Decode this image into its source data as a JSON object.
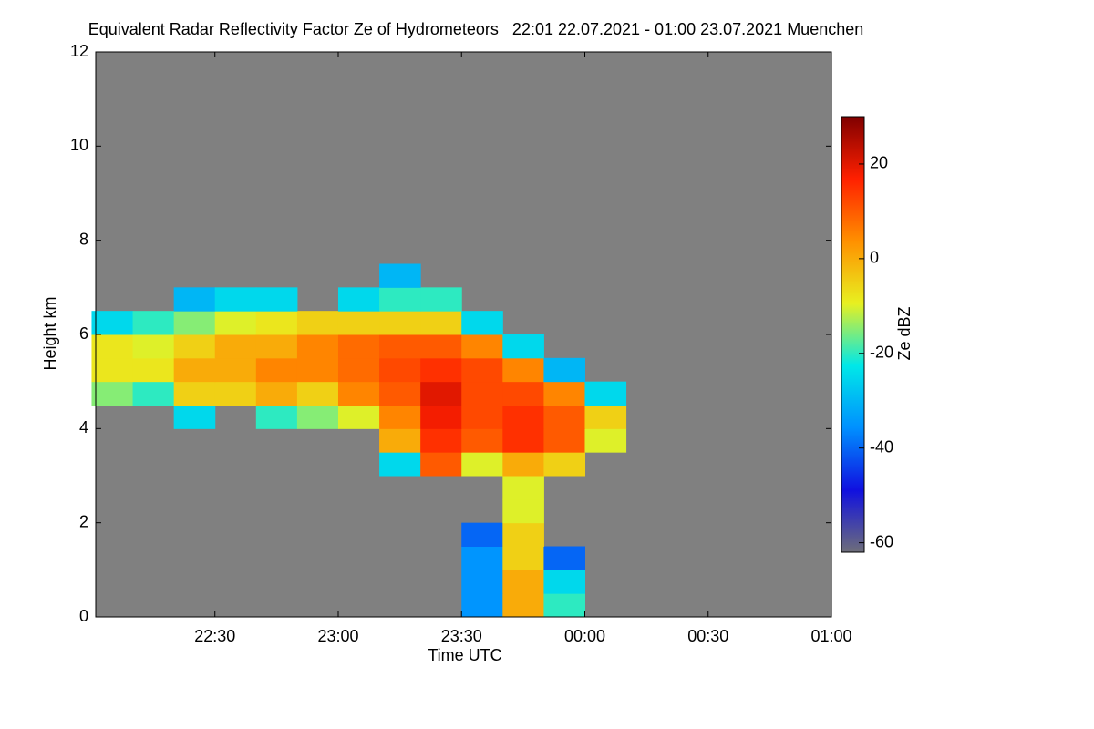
{
  "chart_data": {
    "type": "heatmap",
    "title": "Equivalent Radar Reflectivity Factor Ze of Hydrometeors   22:01 22.07.2021 - 01:00 23.07.2021 Muenchen",
    "x_label": "Time UTC",
    "y_label": "Height km",
    "colorbar_label": "Ze dBZ",
    "x": [
      22.0833,
      22.25,
      22.4167,
      22.5833,
      22.75,
      22.9167,
      23.0833,
      23.25,
      23.4167,
      23.5833,
      23.75,
      23.9167,
      24.0833,
      24.25,
      24.4167,
      24.5833,
      24.75,
      24.9167
    ],
    "y": [
      0.25,
      0.75,
      1.25,
      1.75,
      2.25,
      2.75,
      3.25,
      3.75,
      4.25,
      4.75,
      5.25,
      5.75,
      6.25,
      6.75,
      7.25
    ],
    "z": [
      [
        null,
        null,
        null,
        null,
        null,
        null,
        null,
        null,
        null,
        -35,
        0,
        -20,
        null,
        null,
        null,
        null,
        null,
        null
      ],
      [
        null,
        null,
        null,
        null,
        null,
        null,
        null,
        null,
        null,
        -35,
        0,
        -25,
        null,
        null,
        null,
        null,
        null,
        null
      ],
      [
        null,
        null,
        null,
        null,
        null,
        null,
        null,
        null,
        null,
        -35,
        -5,
        -40,
        null,
        null,
        null,
        null,
        null,
        null
      ],
      [
        null,
        null,
        null,
        null,
        null,
        null,
        null,
        null,
        null,
        -40,
        -5,
        null,
        null,
        null,
        null,
        null,
        null,
        null
      ],
      [
        null,
        null,
        null,
        null,
        null,
        null,
        null,
        null,
        null,
        null,
        -10,
        null,
        null,
        null,
        null,
        null,
        null,
        null
      ],
      [
        null,
        null,
        null,
        null,
        null,
        null,
        null,
        null,
        null,
        null,
        -10,
        null,
        null,
        null,
        null,
        null,
        null,
        null
      ],
      [
        null,
        null,
        null,
        null,
        null,
        null,
        null,
        -25,
        10,
        -10,
        0,
        -5,
        null,
        null,
        null,
        null,
        null,
        null
      ],
      [
        null,
        null,
        null,
        null,
        null,
        null,
        null,
        0,
        15,
        10,
        15,
        10,
        -10,
        null,
        null,
        null,
        null,
        null
      ],
      [
        null,
        null,
        -25,
        null,
        -20,
        -15,
        -10,
        5,
        18,
        12,
        15,
        10,
        -5,
        null,
        null,
        null,
        null,
        null
      ],
      [
        -15,
        -20,
        -5,
        -5,
        0,
        -5,
        5,
        10,
        20,
        12,
        12,
        5,
        -25,
        null,
        null,
        null,
        null,
        null
      ],
      [
        -8,
        -8,
        0,
        0,
        5,
        5,
        8,
        12,
        15,
        12,
        5,
        -30,
        null,
        null,
        null,
        null,
        null,
        null
      ],
      [
        -8,
        -10,
        -5,
        0,
        0,
        5,
        8,
        10,
        10,
        5,
        -25,
        null,
        null,
        null,
        null,
        null,
        null,
        null
      ],
      [
        -25,
        -20,
        -15,
        -10,
        -8,
        -5,
        -5,
        -5,
        -5,
        -25,
        null,
        null,
        null,
        null,
        null,
        null,
        null,
        null
      ],
      [
        null,
        null,
        -30,
        -25,
        -25,
        null,
        -25,
        -20,
        -20,
        null,
        null,
        null,
        null,
        null,
        null,
        null,
        null,
        null
      ],
      [
        null,
        null,
        null,
        null,
        null,
        null,
        null,
        -30,
        null,
        null,
        null,
        null,
        null,
        null,
        null,
        null,
        null,
        null
      ]
    ],
    "xlim": [
      22.0167,
      25.0
    ],
    "xticks": [
      {
        "value": 22.5,
        "label": "22:30"
      },
      {
        "value": 23.0,
        "label": "23:00"
      },
      {
        "value": 23.5,
        "label": "23:30"
      },
      {
        "value": 24.0,
        "label": "00:00"
      },
      {
        "value": 24.5,
        "label": "00:30"
      },
      {
        "value": 25.0,
        "label": "01:00"
      }
    ],
    "ylim": [
      0,
      12
    ],
    "yticks": [
      0,
      2,
      4,
      6,
      8,
      10,
      12
    ],
    "zlim": [
      -62,
      30
    ],
    "zticks": [
      -60,
      -40,
      -20,
      0,
      20
    ],
    "background": "#808080",
    "colormap": [
      "#6e6e7a",
      "#1010e0",
      "#0090ff",
      "#00e8e8",
      "#e8f020",
      "#ff9000",
      "#ff2000",
      "#800000"
    ]
  }
}
